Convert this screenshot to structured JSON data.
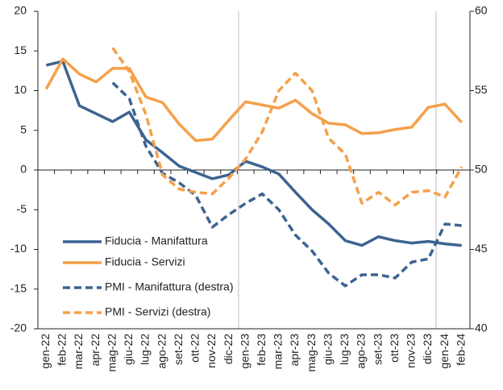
{
  "chart_data": {
    "type": "line",
    "categories": [
      "gen-22",
      "feb-22",
      "mar-22",
      "apr-22",
      "mag-22",
      "giu-22",
      "lug-22",
      "ago-22",
      "set-22",
      "ott-22",
      "nov-22",
      "dic-22",
      "gen-23",
      "feb-23",
      "mar-23",
      "apr-23",
      "mag-23",
      "giu-23",
      "lug-23",
      "ago-23",
      "set-23",
      "ott-23",
      "nov-23",
      "dic-23",
      "gen-24",
      "feb-24"
    ],
    "series": [
      {
        "name": "Fiducia - Manifattura",
        "color": "#3d6491",
        "dash": false,
        "values": [
          13.2,
          13.7,
          8.1,
          7.1,
          6.1,
          7.3,
          3.8,
          2.2,
          0.5,
          -0.3,
          -1.1,
          -0.6,
          1.1,
          0.4,
          -0.5,
          -2.8,
          -5.0,
          -6.8,
          -8.9,
          -9.5,
          -8.4,
          -8.9,
          -9.2,
          -9.0,
          -9.3,
          -9.5
        ]
      },
      {
        "name": "Fiducia - Servizi",
        "color": "#f5a04a",
        "dash": false,
        "values": [
          10.2,
          14.0,
          12.1,
          11.1,
          12.8,
          12.8,
          9.2,
          8.5,
          5.8,
          3.7,
          3.9,
          6.3,
          8.6,
          8.2,
          7.8,
          8.8,
          7.1,
          5.9,
          5.7,
          4.6,
          4.7,
          5.1,
          5.4,
          7.9,
          8.3,
          6.0
        ]
      },
      {
        "name": "PMI - Manifattura (destra)",
        "color": "#3d6491",
        "dash": true,
        "axis": "y2",
        "values": [
          null,
          null,
          null,
          null,
          55.5,
          54.5,
          51.5,
          49.8,
          49.2,
          48.4,
          46.4,
          47.2,
          47.9,
          48.5,
          47.5,
          45.9,
          44.9,
          43.5,
          42.7,
          43.4,
          43.4,
          43.2,
          44.2,
          44.4,
          46.6,
          46.5
        ]
      },
      {
        "name": "PMI - Servizi (destra)",
        "color": "#f5a04a",
        "dash": true,
        "axis": "y2",
        "values": [
          null,
          null,
          null,
          null,
          57.7,
          56.2,
          53.5,
          49.7,
          48.8,
          48.6,
          48.5,
          49.5,
          50.7,
          52.4,
          55.0,
          56.1,
          55.0,
          52.0,
          51.0,
          47.9,
          48.6,
          47.8,
          48.6,
          48.7,
          48.3,
          50.2
        ]
      }
    ],
    "ylim": [
      -20,
      20
    ],
    "yticks": [
      -20,
      -15,
      -10,
      -5,
      0,
      5,
      10,
      15,
      20
    ],
    "y2lim": [
      40,
      60
    ],
    "y2ticks": [
      40,
      45,
      50,
      55,
      60
    ],
    "legend": "lower left"
  }
}
